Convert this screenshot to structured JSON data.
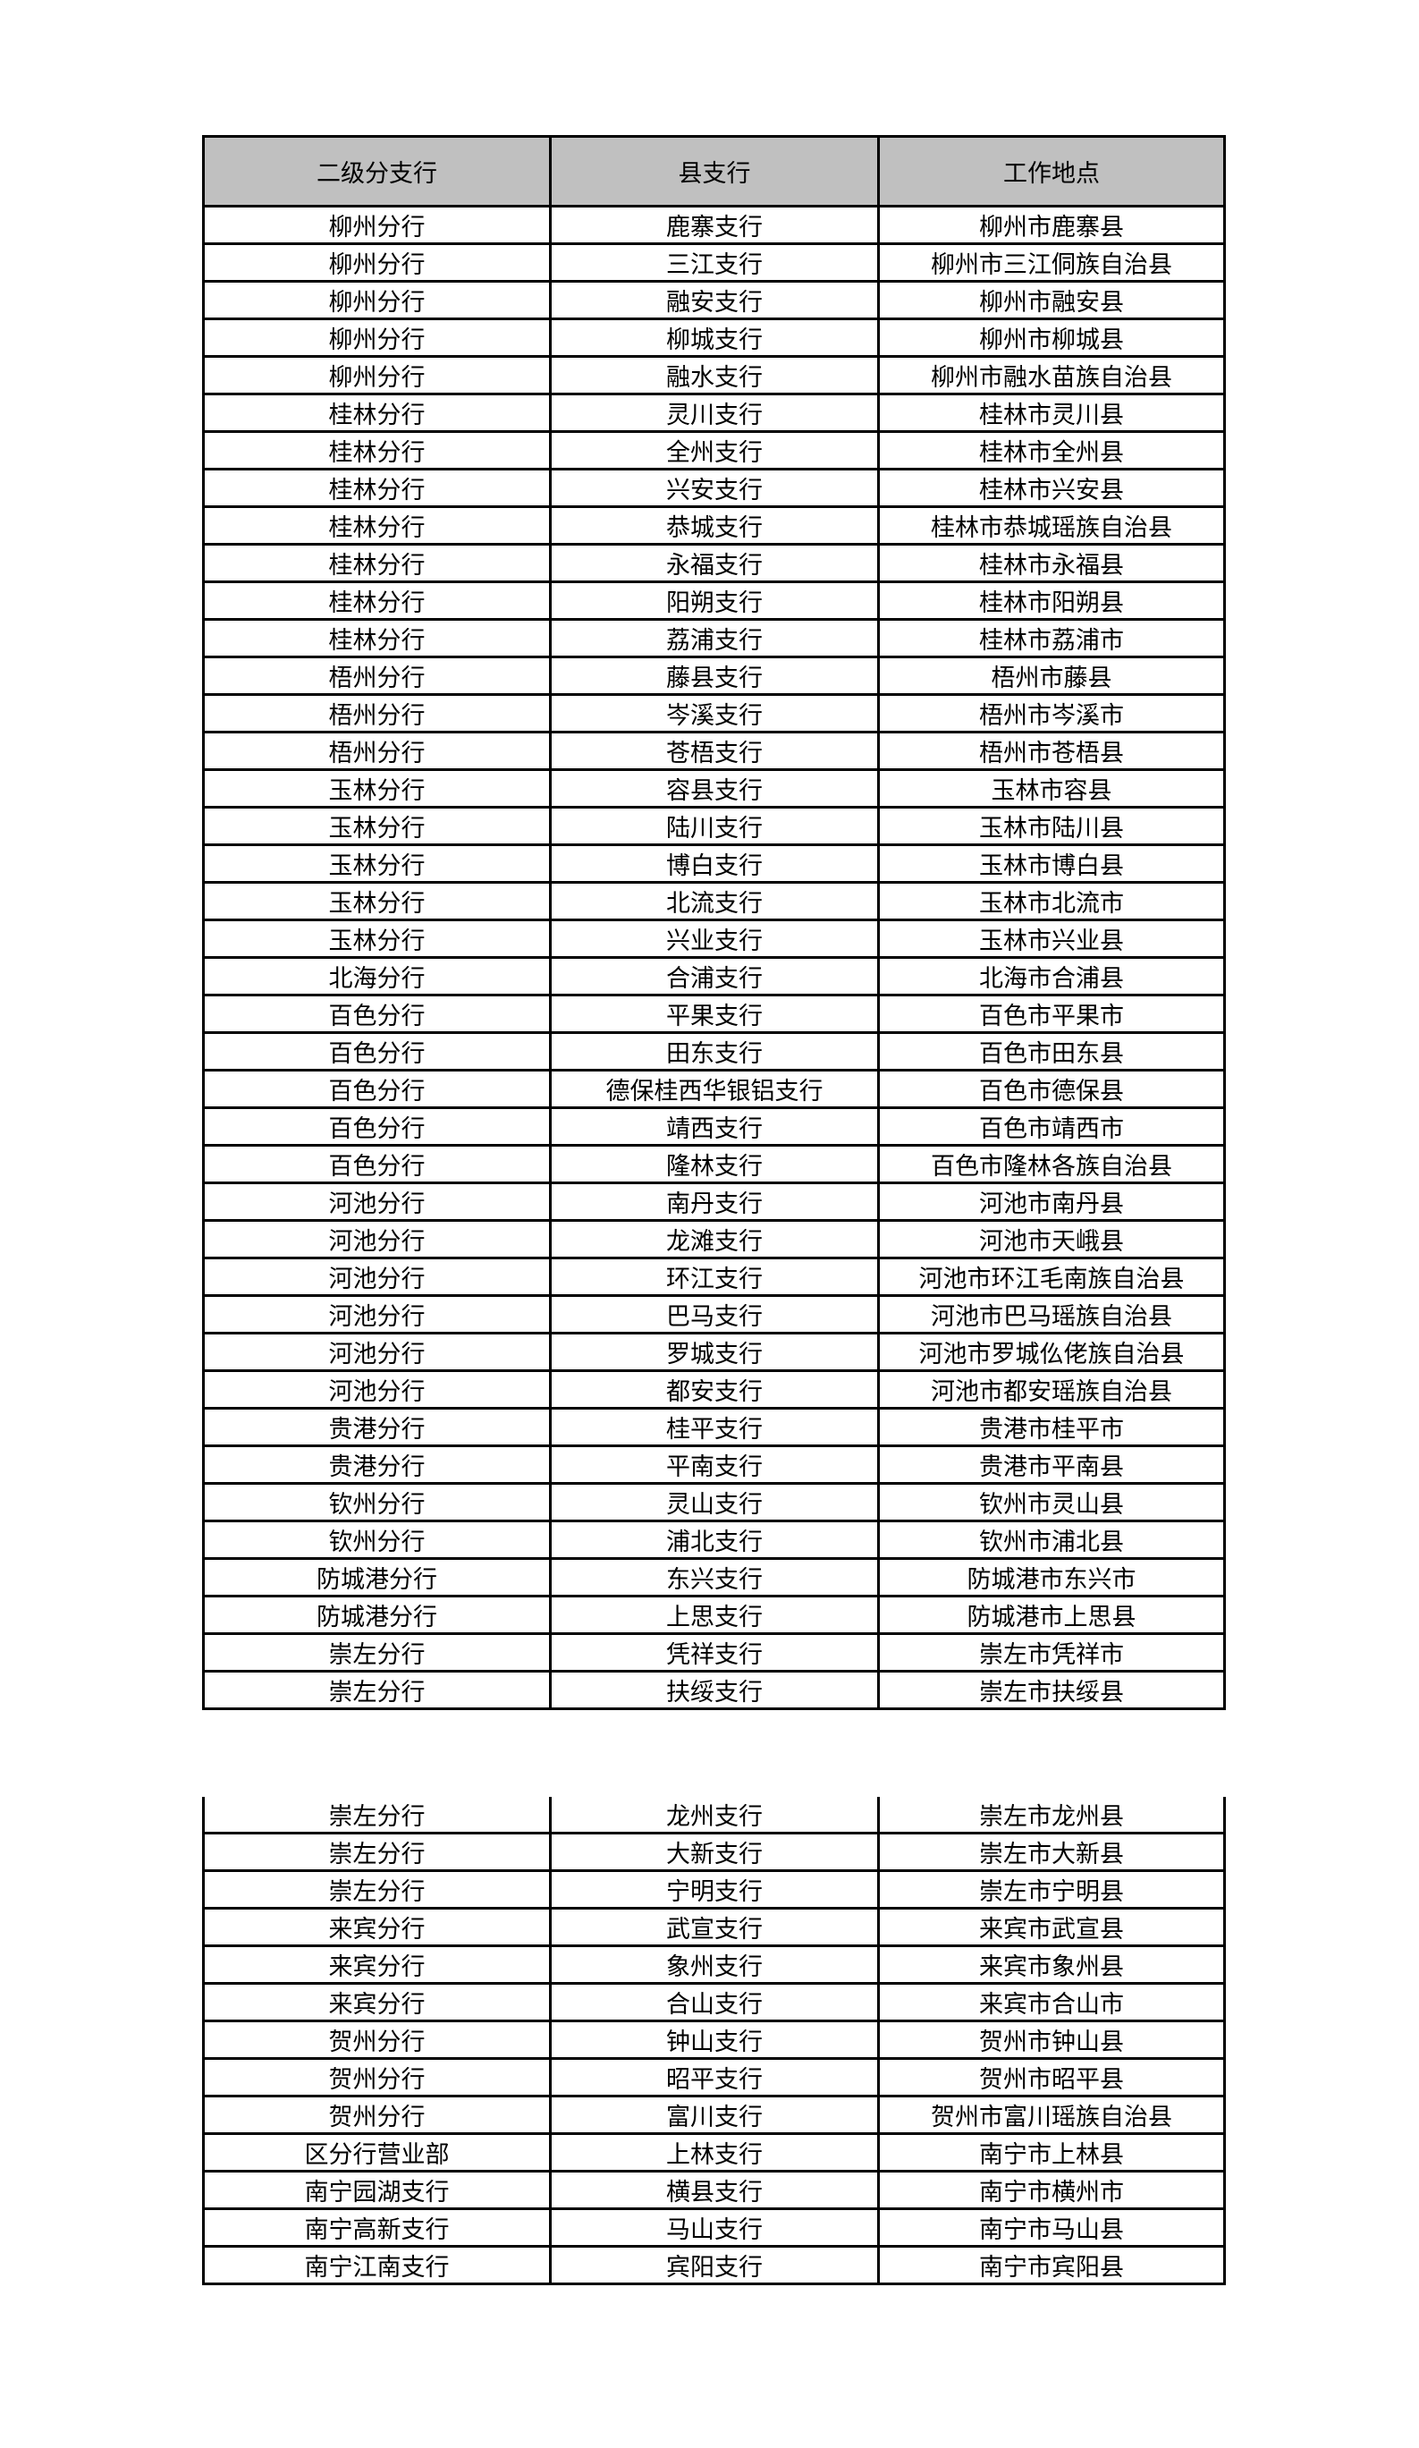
{
  "header": [
    "二级分支行",
    "县支行",
    "工作地点"
  ],
  "rows_part1": [
    [
      "柳州分行",
      "鹿寨支行",
      "柳州市鹿寨县"
    ],
    [
      "柳州分行",
      "三江支行",
      "柳州市三江侗族自治县"
    ],
    [
      "柳州分行",
      "融安支行",
      "柳州市融安县"
    ],
    [
      "柳州分行",
      "柳城支行",
      "柳州市柳城县"
    ],
    [
      "柳州分行",
      "融水支行",
      "柳州市融水苗族自治县"
    ],
    [
      "桂林分行",
      "灵川支行",
      "桂林市灵川县"
    ],
    [
      "桂林分行",
      "全州支行",
      "桂林市全州县"
    ],
    [
      "桂林分行",
      "兴安支行",
      "桂林市兴安县"
    ],
    [
      "桂林分行",
      "恭城支行",
      "桂林市恭城瑶族自治县"
    ],
    [
      "桂林分行",
      "永福支行",
      "桂林市永福县"
    ],
    [
      "桂林分行",
      "阳朔支行",
      "桂林市阳朔县"
    ],
    [
      "桂林分行",
      "荔浦支行",
      "桂林市荔浦市"
    ],
    [
      "梧州分行",
      "藤县支行",
      "梧州市藤县"
    ],
    [
      "梧州分行",
      "岑溪支行",
      "梧州市岑溪市"
    ],
    [
      "梧州分行",
      "苍梧支行",
      "梧州市苍梧县"
    ],
    [
      "玉林分行",
      "容县支行",
      "玉林市容县"
    ],
    [
      "玉林分行",
      "陆川支行",
      "玉林市陆川县"
    ],
    [
      "玉林分行",
      "博白支行",
      "玉林市博白县"
    ],
    [
      "玉林分行",
      "北流支行",
      "玉林市北流市"
    ],
    [
      "玉林分行",
      "兴业支行",
      "玉林市兴业县"
    ],
    [
      "北海分行",
      "合浦支行",
      "北海市合浦县"
    ],
    [
      "百色分行",
      "平果支行",
      "百色市平果市"
    ],
    [
      "百色分行",
      "田东支行",
      "百色市田东县"
    ],
    [
      "百色分行",
      "德保桂西华银铝支行",
      "百色市德保县"
    ],
    [
      "百色分行",
      "靖西支行",
      "百色市靖西市"
    ],
    [
      "百色分行",
      "隆林支行",
      "百色市隆林各族自治县"
    ],
    [
      "河池分行",
      "南丹支行",
      "河池市南丹县"
    ],
    [
      "河池分行",
      "龙滩支行",
      "河池市天峨县"
    ],
    [
      "河池分行",
      "环江支行",
      "河池市环江毛南族自治县"
    ],
    [
      "河池分行",
      "巴马支行",
      "河池市巴马瑶族自治县"
    ],
    [
      "河池分行",
      "罗城支行",
      "河池市罗城仫佬族自治县"
    ],
    [
      "河池分行",
      "都安支行",
      "河池市都安瑶族自治县"
    ],
    [
      "贵港分行",
      "桂平支行",
      "贵港市桂平市"
    ],
    [
      "贵港分行",
      "平南支行",
      "贵港市平南县"
    ],
    [
      "钦州分行",
      "灵山支行",
      "钦州市灵山县"
    ],
    [
      "钦州分行",
      "浦北支行",
      "钦州市浦北县"
    ],
    [
      "防城港分行",
      "东兴支行",
      "防城港市东兴市"
    ],
    [
      "防城港分行",
      "上思支行",
      "防城港市上思县"
    ],
    [
      "崇左分行",
      "凭祥支行",
      "崇左市凭祥市"
    ],
    [
      "崇左分行",
      "扶绥支行",
      "崇左市扶绥县"
    ]
  ],
  "rows_part2": [
    [
      "崇左分行",
      "龙州支行",
      "崇左市龙州县"
    ],
    [
      "崇左分行",
      "大新支行",
      "崇左市大新县"
    ],
    [
      "崇左分行",
      "宁明支行",
      "崇左市宁明县"
    ],
    [
      "来宾分行",
      "武宣支行",
      "来宾市武宣县"
    ],
    [
      "来宾分行",
      "象州支行",
      "来宾市象州县"
    ],
    [
      "来宾分行",
      "合山支行",
      "来宾市合山市"
    ],
    [
      "贺州分行",
      "钟山支行",
      "贺州市钟山县"
    ],
    [
      "贺州分行",
      "昭平支行",
      "贺州市昭平县"
    ],
    [
      "贺州分行",
      "富川支行",
      "贺州市富川瑶族自治县"
    ],
    [
      "区分行营业部",
      "上林支行",
      "南宁市上林县"
    ],
    [
      "南宁园湖支行",
      "横县支行",
      "南宁市横州市"
    ],
    [
      "南宁高新支行",
      "马山支行",
      "南宁市马山县"
    ],
    [
      "南宁江南支行",
      "宾阳支行",
      "南宁市宾阳县"
    ]
  ]
}
